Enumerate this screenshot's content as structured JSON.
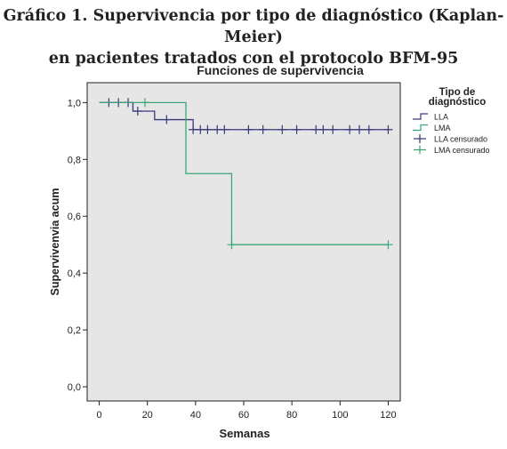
{
  "figure": {
    "caption_line1": "Gráfico 1. Supervivencia por tipo de diagnóstico (Kaplan-Meier)",
    "caption_line2": "en pacientes tratados con el protocolo BFM-95"
  },
  "chart_data": {
    "type": "line",
    "title": "Funciones de supervivencia",
    "xlabel": "Semanas",
    "ylabel": "Supervivenvia acum",
    "xlim": [
      -5,
      125
    ],
    "ylim": [
      -0.05,
      1.07
    ],
    "x_ticks": [
      0,
      20,
      40,
      60,
      80,
      100,
      120
    ],
    "y_ticks": [
      0.0,
      0.2,
      0.4,
      0.6,
      0.8,
      1.0
    ],
    "y_tick_labels": [
      "0,0",
      "0,2",
      "0,4",
      "0,6",
      "0,8",
      "1,0"
    ],
    "legend_title": "Tipo de diagnóstico",
    "legend_title_lines": [
      "Tipo de",
      "diagnóstico"
    ],
    "legend_position": "right-outside-top",
    "legend_entries": [
      "LLA",
      "LMA",
      "LLA censurado",
      "LMA censurado"
    ],
    "background": "#e6e6e6",
    "series": [
      {
        "name": "LLA",
        "color": "#39397a",
        "steps": [
          [
            0,
            1.0
          ],
          [
            14,
            0.97
          ],
          [
            23,
            0.94
          ],
          [
            39,
            0.905
          ],
          [
            120,
            0.905
          ]
        ],
        "censored": [
          4,
          8,
          12,
          16,
          28,
          39,
          42,
          45,
          49,
          52,
          62,
          68,
          76,
          82,
          90,
          93,
          97,
          104,
          108,
          112,
          120
        ]
      },
      {
        "name": "LMA",
        "color": "#3aa675",
        "steps": [
          [
            0,
            1.0
          ],
          [
            36,
            0.75
          ],
          [
            55,
            0.5
          ],
          [
            120,
            0.5
          ]
        ],
        "censored": [
          19,
          55,
          120
        ]
      }
    ]
  }
}
